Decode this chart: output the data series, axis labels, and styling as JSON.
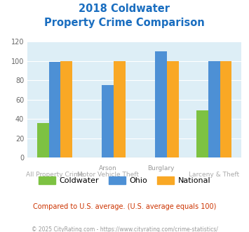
{
  "title_line1": "2018 Coldwater",
  "title_line2": "Property Crime Comparison",
  "top_labels": [
    "",
    "Arson",
    "Burglary",
    ""
  ],
  "bot_labels": [
    "All Property Crime",
    "Motor Vehicle Theft",
    "",
    "Larceny & Theft"
  ],
  "coldwater": [
    36,
    0,
    0,
    49
  ],
  "ohio": [
    99,
    75,
    110,
    100
  ],
  "national": [
    100,
    100,
    100,
    100
  ],
  "coldwater_color": "#7dc242",
  "ohio_color": "#4d90d5",
  "national_color": "#f9a825",
  "ylim": [
    0,
    120
  ],
  "yticks": [
    0,
    20,
    40,
    60,
    80,
    100,
    120
  ],
  "bg_color": "#ddeef6",
  "fig_bg": "#ffffff",
  "title_color": "#1a6ec0",
  "label_color_top": "#999999",
  "label_color_bot": "#aaaaaa",
  "subtitle_text": "Compared to U.S. average. (U.S. average equals 100)",
  "subtitle_color": "#cc3300",
  "footer_text": "© 2025 CityRating.com - https://www.cityrating.com/crime-statistics/",
  "footer_color": "#999999",
  "legend_labels": [
    "Coldwater",
    "Ohio",
    "National"
  ],
  "bar_width": 0.22
}
